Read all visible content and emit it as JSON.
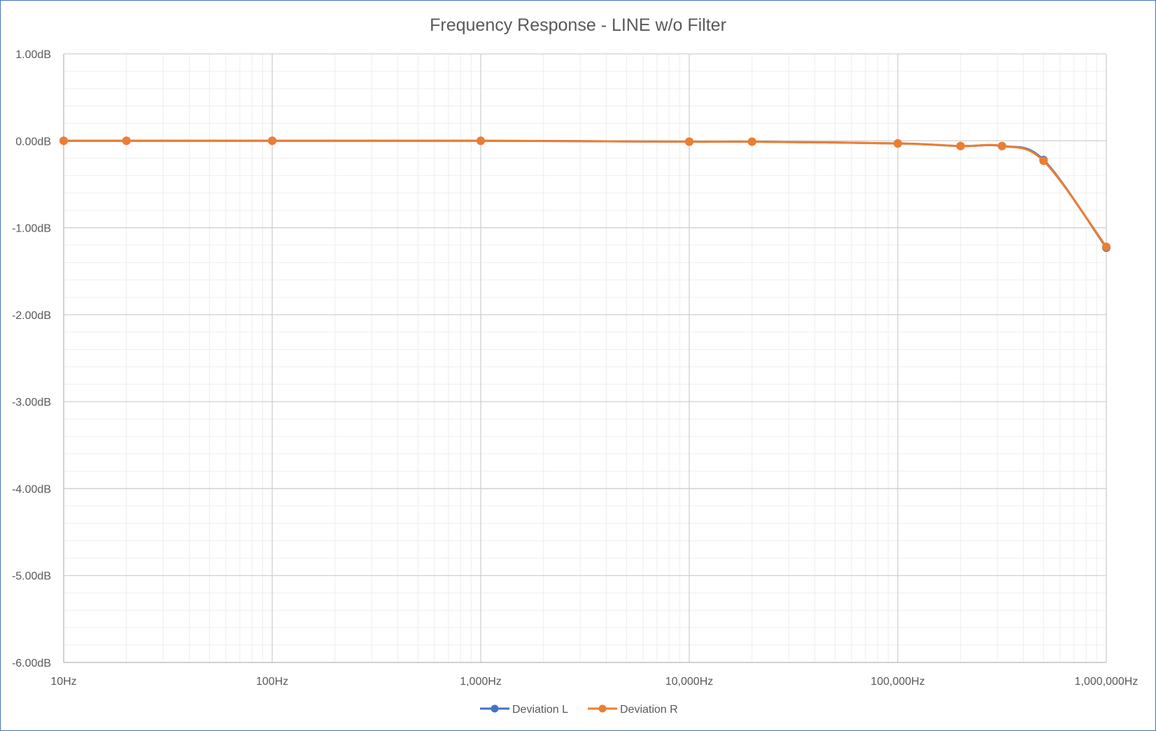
{
  "chart_data": {
    "type": "line",
    "title": "Frequency Response - LINE w/o Filter",
    "xlabel": "",
    "ylabel": "",
    "xscale": "log",
    "xlim": [
      10,
      1000000
    ],
    "ylim": [
      -6,
      1
    ],
    "x_ticks": [
      10,
      100,
      1000,
      10000,
      100000,
      1000000
    ],
    "x_tick_labels": [
      "10Hz",
      "100Hz",
      "1,000Hz",
      "10,000Hz",
      "100,000Hz",
      "1,000,000Hz"
    ],
    "y_ticks": [
      1,
      0,
      -1,
      -2,
      -3,
      -4,
      -5,
      -6
    ],
    "y_tick_labels": [
      "1.00dB",
      "0.00dB",
      "-1.00dB",
      "-2.00dB",
      "-3.00dB",
      "-4.00dB",
      "-5.00dB",
      "-6.00dB"
    ],
    "grid": true,
    "legend_position": "bottom",
    "x": [
      10,
      20,
      100,
      1000,
      10000,
      20000,
      100000,
      200000,
      316000,
      500000,
      1000000
    ],
    "series": [
      {
        "name": "Deviation L",
        "color": "#4472c4",
        "values": [
          0.0,
          0.0,
          0.0,
          0.0,
          -0.01,
          -0.01,
          -0.03,
          -0.06,
          -0.06,
          -0.22,
          -1.23
        ]
      },
      {
        "name": "Deviation R",
        "color": "#ed7d31",
        "values": [
          0.0,
          0.0,
          0.0,
          0.0,
          -0.01,
          -0.01,
          -0.03,
          -0.06,
          -0.06,
          -0.23,
          -1.22
        ]
      }
    ]
  }
}
